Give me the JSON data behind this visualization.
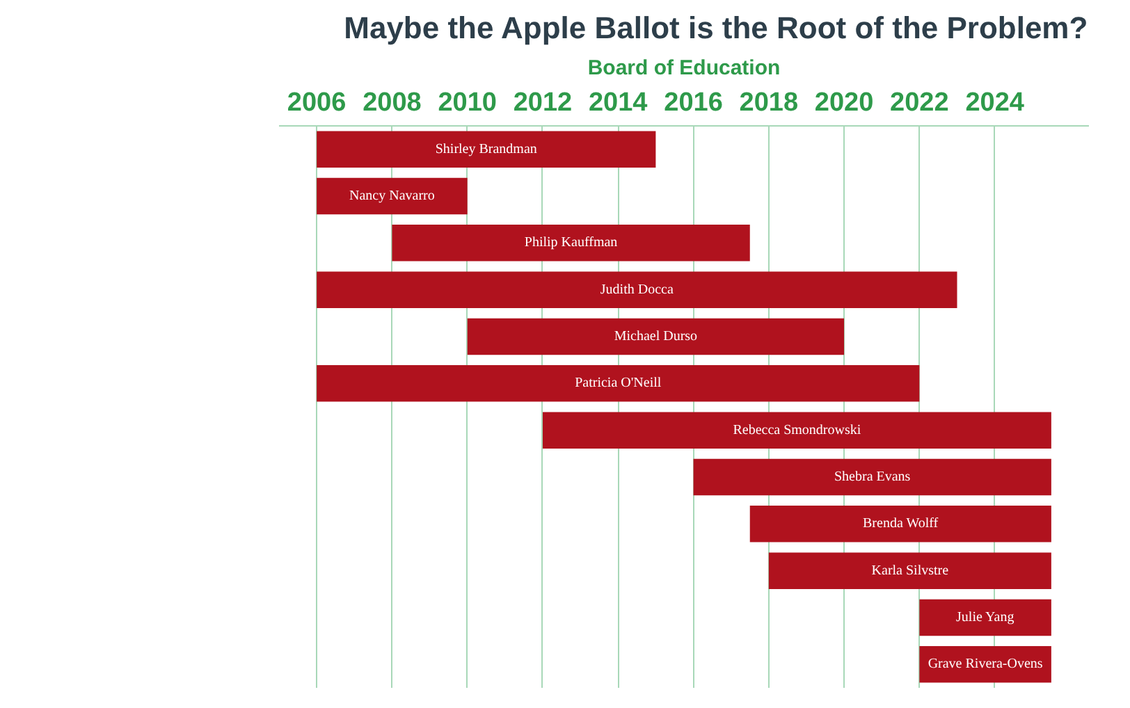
{
  "chart_data": {
    "type": "bar",
    "orientation": "horizontal",
    "title": "Maybe the Apple Ballot is the Root of the Problem?",
    "xlabel": "Board of Education",
    "categories": [
      "Shirley Brandman",
      "Nancy Navarro",
      "Philip Kauffman",
      "Judith Docca",
      "Michael Durso",
      "Patricia O'Neill",
      "Rebecca Smondrowski",
      "Shebra Evans",
      "Brenda Wolff",
      "Karla Silvstre",
      "Julie Yang",
      "Grave Rivera-Ovens"
    ],
    "base": [
      2006,
      2006,
      2008,
      2006,
      2010,
      2006,
      2012,
      2016,
      2017.5,
      2018,
      2022,
      2022
    ],
    "values": [
      9,
      4,
      9.5,
      17,
      10,
      16,
      13.5,
      9.5,
      8,
      7.5,
      3.5,
      3.5
    ],
    "color": "#b0121e",
    "xlim": [
      2005,
      2026.5
    ],
    "xticks": [
      2006,
      2008,
      2010,
      2012,
      2014,
      2016,
      2018,
      2020,
      2022,
      2024
    ],
    "grid": "x",
    "tick_labels": "x"
  }
}
